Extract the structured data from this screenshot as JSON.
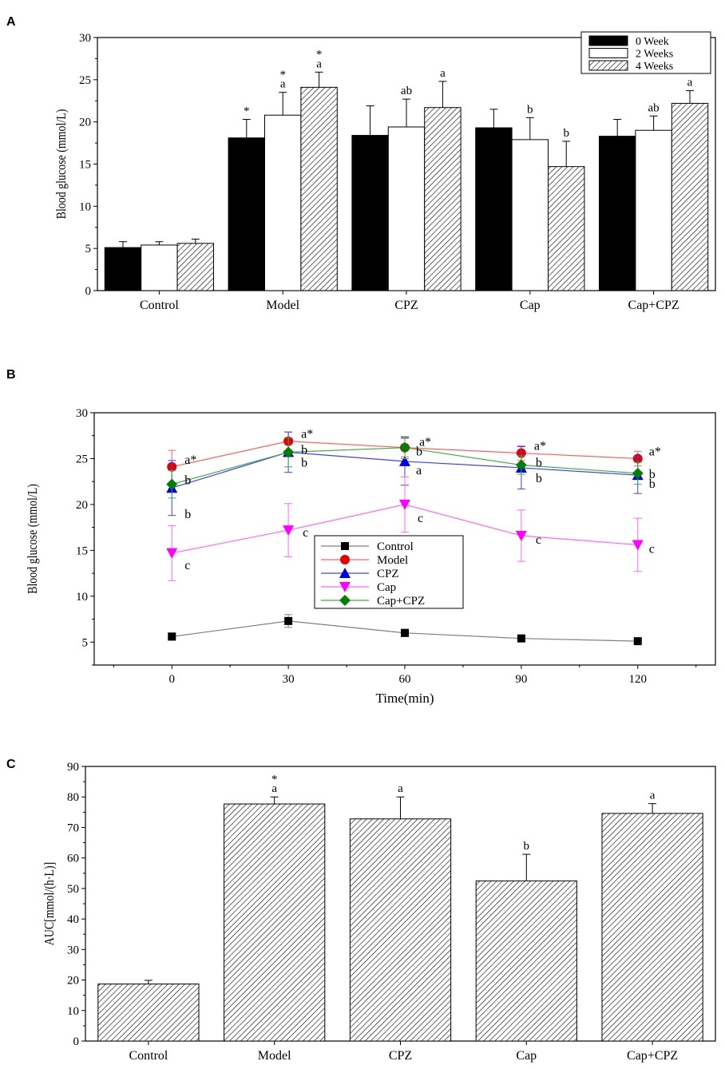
{
  "chart_data": [
    {
      "panel": "A",
      "type": "bar",
      "ylabel": "Blood glucose (mmol/L)",
      "xlabel": "",
      "ylim": [
        0,
        30
      ],
      "yticks": [
        0,
        5,
        10,
        15,
        20,
        25,
        30
      ],
      "categories": [
        "Control",
        "Model",
        "CPZ",
        "Cap",
        "Cap+CPZ"
      ],
      "legend_position": "top-right",
      "series": [
        {
          "name": "0 Week",
          "fill": "solid",
          "color": "#000000",
          "values": [
            5.1,
            18.1,
            18.4,
            19.3,
            18.3
          ],
          "errors": [
            0.7,
            2.2,
            3.5,
            2.2,
            2.0
          ],
          "labels": [
            "",
            "*",
            "",
            "",
            ""
          ]
        },
        {
          "name": "2 Weeks",
          "fill": "white",
          "color": "#ffffff",
          "values": [
            5.4,
            20.8,
            19.4,
            17.9,
            19.0
          ],
          "errors": [
            0.4,
            2.7,
            3.3,
            2.6,
            1.7
          ],
          "labels": [
            "",
            "*\na",
            "ab",
            "b",
            "ab"
          ]
        },
        {
          "name": "4 Weeks",
          "fill": "hatch",
          "color": "#ffffff",
          "values": [
            5.6,
            24.1,
            21.7,
            14.7,
            22.2
          ],
          "errors": [
            0.5,
            1.8,
            3.1,
            3.0,
            1.5
          ],
          "labels": [
            "",
            "*\na",
            "a",
            "b",
            "a"
          ]
        }
      ]
    },
    {
      "panel": "B",
      "type": "line",
      "ylabel": "Blood glucose (mmol/L)",
      "xlabel": "Time(min)",
      "x": [
        0,
        30,
        60,
        90,
        120
      ],
      "xlim": [
        -20,
        140
      ],
      "ylim": [
        2.5,
        30
      ],
      "yticks": [
        5,
        10,
        15,
        20,
        25,
        30
      ],
      "legend_position": "center",
      "series": [
        {
          "name": "Control",
          "color": "#808080",
          "marker": "square",
          "marker_color": "#000000",
          "values": [
            5.6,
            7.3,
            6.0,
            5.4,
            5.1
          ],
          "errors": [
            0.4,
            0.7,
            0.4,
            0.3,
            0.2
          ],
          "labels": [
            "",
            "",
            "",
            "",
            ""
          ]
        },
        {
          "name": "Model",
          "color": "#ff6060",
          "marker": "circle",
          "marker_color": "#e60000",
          "values": [
            24.1,
            26.9,
            26.2,
            25.6,
            25.0
          ],
          "errors": [
            1.8,
            1.0,
            1.0,
            0.8,
            0.8
          ],
          "labels": [
            "a*",
            "a*",
            "a*",
            "a*",
            "a*"
          ]
        },
        {
          "name": "CPZ",
          "color": "#4040ff",
          "marker": "triangle-up",
          "marker_color": "#0000e6",
          "values": [
            21.8,
            25.7,
            24.7,
            24.0,
            23.2
          ],
          "errors": [
            3.0,
            2.2,
            2.6,
            2.3,
            2.0
          ],
          "labels": [
            "b",
            "b",
            "a",
            "b",
            "b"
          ]
        },
        {
          "name": "Cap",
          "color": "#ff66ff",
          "marker": "triangle-down",
          "marker_color": "#ff00ff",
          "values": [
            14.7,
            17.2,
            20.0,
            16.6,
            15.6
          ],
          "errors": [
            3.0,
            2.9,
            3.0,
            2.8,
            2.9
          ],
          "labels": [
            "c",
            "c",
            "c",
            "c",
            "c"
          ]
        },
        {
          "name": "Cap+CPZ",
          "color": "#40b040",
          "marker": "diamond",
          "marker_color": "#008000",
          "values": [
            22.2,
            25.7,
            26.2,
            24.3,
            23.4
          ],
          "errors": [
            1.5,
            1.6,
            1.2,
            1.0,
            1.2
          ],
          "labels": [
            "b",
            "b",
            "b",
            "b",
            "b"
          ]
        }
      ]
    },
    {
      "panel": "C",
      "type": "bar",
      "ylabel": "AUC[mmol/(h·L)]",
      "xlabel": "",
      "ylim": [
        0,
        90
      ],
      "yticks": [
        0,
        10,
        20,
        30,
        40,
        50,
        60,
        70,
        80,
        90
      ],
      "categories": [
        "Control",
        "Model",
        "CPZ",
        "Cap",
        "Cap+CPZ"
      ],
      "series": [
        {
          "name": "AUC",
          "fill": "hatch",
          "color": "#ffffff",
          "values": [
            18.7,
            77.7,
            72.8,
            52.5,
            74.6
          ],
          "errors": [
            1.2,
            2.3,
            7.2,
            8.7,
            3.2
          ],
          "labels": [
            "",
            "*\na",
            "a",
            "b",
            "a"
          ]
        }
      ]
    }
  ]
}
